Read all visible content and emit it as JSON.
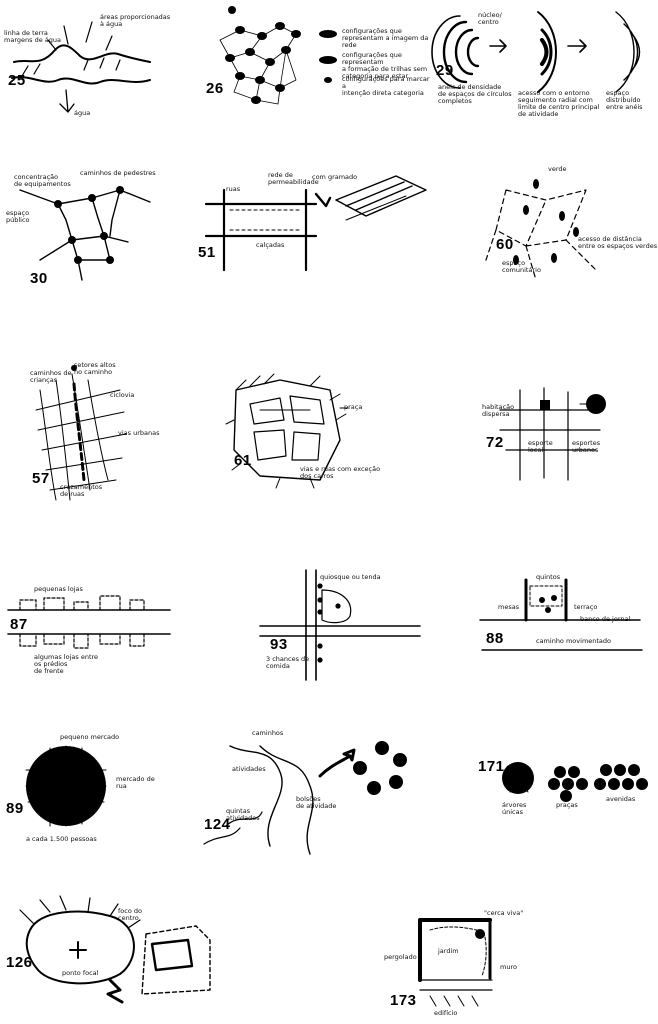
{
  "patterns": [
    {
      "id": "p25",
      "number": "25",
      "labels": [
        "linha de terra\nmargens de água",
        "áreas proporcionadas\nà água",
        "água"
      ]
    },
    {
      "id": "p26",
      "number": "26",
      "labels": [
        "configurações que\nrepresentam a imagem da rede",
        "configurações que representam\na formação de trilhas sem\ncategoria para estar",
        "configurações para marcar a\nintenção direta categoria"
      ]
    },
    {
      "id": "p29",
      "number": "29",
      "labels": [
        "núcleo/\ncentro",
        "anéis de densidade\nde espaços de círculos\ncompletos",
        "acesso com o entorno\nseguimento radial com\nlimite de centro principal\nde atividade",
        "espaço distribuído\nentre anéis"
      ]
    },
    {
      "id": "p30",
      "number": "30",
      "labels": [
        "concentração\nde equipamentos",
        "caminhos de pedestres",
        "espaço\npúblico"
      ]
    },
    {
      "id": "p51",
      "number": "51",
      "labels": [
        "ruas",
        "rede de\npermeabilidade",
        "com gramado",
        "calçadas"
      ]
    },
    {
      "id": "p60",
      "number": "60",
      "labels": [
        "verde",
        "espaço\ncomunitário",
        "acesso de distância\nentre os espaços verdes"
      ]
    },
    {
      "id": "p57",
      "number": "57",
      "labels": [
        "caminhos de\ncrianças",
        "ciclovia",
        "setores altos\nno caminho",
        "vias urbanas",
        "cruzamentos\nde ruas"
      ]
    },
    {
      "id": "p61",
      "number": "61",
      "labels": [
        "praça",
        "vias e ruas com exceção\ndos carros"
      ]
    },
    {
      "id": "p72",
      "number": "72",
      "labels": [
        "habitação\ndispersa",
        "esporte\nlocal",
        "esportes\nurbanos"
      ]
    },
    {
      "id": "p87",
      "number": "87",
      "labels": [
        "pequenas lojas",
        "algumas lojas entre\nos prédios\nde frente"
      ]
    },
    {
      "id": "p93",
      "number": "93",
      "labels": [
        "quiosque ou tenda",
        "3 chances de\ncomida"
      ]
    },
    {
      "id": "p88",
      "number": "88",
      "labels": [
        "quintos",
        "mesas",
        "terraço",
        "banco de jornal",
        "caminho movimentado"
      ]
    },
    {
      "id": "p89",
      "number": "89",
      "labels": [
        "pequeno mercado",
        "mercado de\nrua",
        "a cada 1.500 pessoas"
      ]
    },
    {
      "id": "p124",
      "number": "124",
      "labels": [
        "caminhos",
        "atividades",
        "bolsões\nde atividade",
        "quintas\natividades"
      ]
    },
    {
      "id": "p171",
      "number": "171",
      "labels": [
        "árvores\núnicas",
        "praças",
        "avenidas"
      ]
    },
    {
      "id": "p126",
      "number": "126",
      "labels": [
        "foco do\ncentro",
        "ponto focal"
      ]
    },
    {
      "id": "p173",
      "number": "173",
      "labels": [
        "\"cerca viva\"",
        "jardim",
        "pergolado",
        "muro",
        "edifício"
      ]
    }
  ]
}
